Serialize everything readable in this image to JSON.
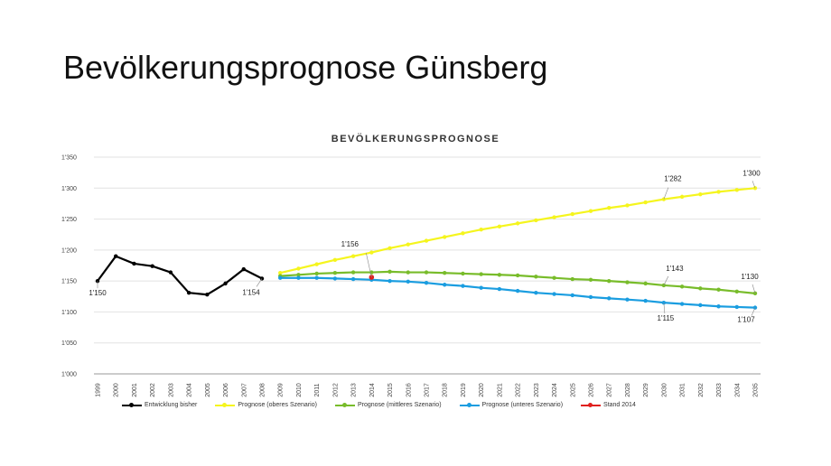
{
  "slide": {
    "title": "Bevölkerungsprognose Günsberg"
  },
  "chart_data": {
    "type": "line",
    "title": "BEVÖLKERUNGSPROGNOSE",
    "ylim": [
      1000,
      1350
    ],
    "yticks": [
      1000,
      1050,
      1100,
      1150,
      1200,
      1250,
      1300,
      1350
    ],
    "ytick_labels": [
      "1'000",
      "1'050",
      "1'100",
      "1'150",
      "1'200",
      "1'250",
      "1'300",
      "1'350"
    ],
    "categories": [
      "1999",
      "2000",
      "2001",
      "2002",
      "2003",
      "2004",
      "2005",
      "2006",
      "2007",
      "2008",
      "2009",
      "2010",
      "2011",
      "2012",
      "2013",
      "2014",
      "2015",
      "2016",
      "2017",
      "2018",
      "2019",
      "2020",
      "2021",
      "2022",
      "2023",
      "2024",
      "2025",
      "2026",
      "2027",
      "2028",
      "2029",
      "2030",
      "2031",
      "2032",
      "2033",
      "2034",
      "2035"
    ],
    "grid": true,
    "legend_position": "bottom",
    "series": [
      {
        "name": "Entwicklung bisher",
        "color": "#000000",
        "x": [
          "1999",
          "2000",
          "2001",
          "2002",
          "2003",
          "2004",
          "2005",
          "2006",
          "2007",
          "2008"
        ],
        "values": [
          1150,
          1190,
          1178,
          1174,
          1164,
          1131,
          1128,
          1146,
          1169,
          1154
        ]
      },
      {
        "name": "Prognose (oberes Szenario)",
        "color": "#f5f51e",
        "x": [
          "2009",
          "2010",
          "2011",
          "2012",
          "2013",
          "2014",
          "2015",
          "2016",
          "2017",
          "2018",
          "2019",
          "2020",
          "2021",
          "2022",
          "2023",
          "2024",
          "2025",
          "2026",
          "2027",
          "2028",
          "2029",
          "2030",
          "2031",
          "2032",
          "2033",
          "2034",
          "2035"
        ],
        "values": [
          1163,
          1170,
          1177,
          1184,
          1190,
          1196,
          1203,
          1209,
          1215,
          1221,
          1227,
          1233,
          1238,
          1243,
          1248,
          1253,
          1258,
          1263,
          1268,
          1272,
          1277,
          1282,
          1286,
          1290,
          1294,
          1297,
          1300
        ]
      },
      {
        "name": "Prognose (mittleres Szenario)",
        "color": "#78bc2a",
        "x": [
          "2009",
          "2010",
          "2011",
          "2012",
          "2013",
          "2014",
          "2015",
          "2016",
          "2017",
          "2018",
          "2019",
          "2020",
          "2021",
          "2022",
          "2023",
          "2024",
          "2025",
          "2026",
          "2027",
          "2028",
          "2029",
          "2030",
          "2031",
          "2032",
          "2033",
          "2034",
          "2035"
        ],
        "values": [
          1158,
          1160,
          1162,
          1163,
          1164,
          1164,
          1165,
          1164,
          1164,
          1163,
          1162,
          1161,
          1160,
          1159,
          1157,
          1155,
          1153,
          1152,
          1150,
          1148,
          1146,
          1143,
          1141,
          1138,
          1136,
          1133,
          1130
        ]
      },
      {
        "name": "Prognose (unteres Szenario)",
        "color": "#1a9de0",
        "x": [
          "2009",
          "2010",
          "2011",
          "2012",
          "2013",
          "2014",
          "2015",
          "2016",
          "2017",
          "2018",
          "2019",
          "2020",
          "2021",
          "2022",
          "2023",
          "2024",
          "2025",
          "2026",
          "2027",
          "2028",
          "2029",
          "2030",
          "2031",
          "2032",
          "2033",
          "2034",
          "2035"
        ],
        "values": [
          1155,
          1155,
          1155,
          1154,
          1153,
          1152,
          1150,
          1149,
          1147,
          1144,
          1142,
          1139,
          1137,
          1134,
          1131,
          1129,
          1127,
          1124,
          1122,
          1120,
          1118,
          1115,
          1113,
          1111,
          1109,
          1108,
          1107
        ]
      },
      {
        "name": "Stand 2014",
        "color": "#e0201e",
        "x": [
          "2014"
        ],
        "values": [
          1156
        ]
      }
    ],
    "annotations": [
      {
        "text": "1'150",
        "x": "1999",
        "y": 1150
      },
      {
        "text": "1'154",
        "x": "2008",
        "y": 1154
      },
      {
        "text": "1'156",
        "x": "2014",
        "y": 1156
      },
      {
        "text": "1'282",
        "x": "2030",
        "y": 1282
      },
      {
        "text": "1'300",
        "x": "2035",
        "y": 1300
      },
      {
        "text": "1'143",
        "x": "2030",
        "y": 1143
      },
      {
        "text": "1'130",
        "x": "2035",
        "y": 1130
      },
      {
        "text": "1'115",
        "x": "2030",
        "y": 1115
      },
      {
        "text": "1'107",
        "x": "2035",
        "y": 1107
      }
    ]
  }
}
